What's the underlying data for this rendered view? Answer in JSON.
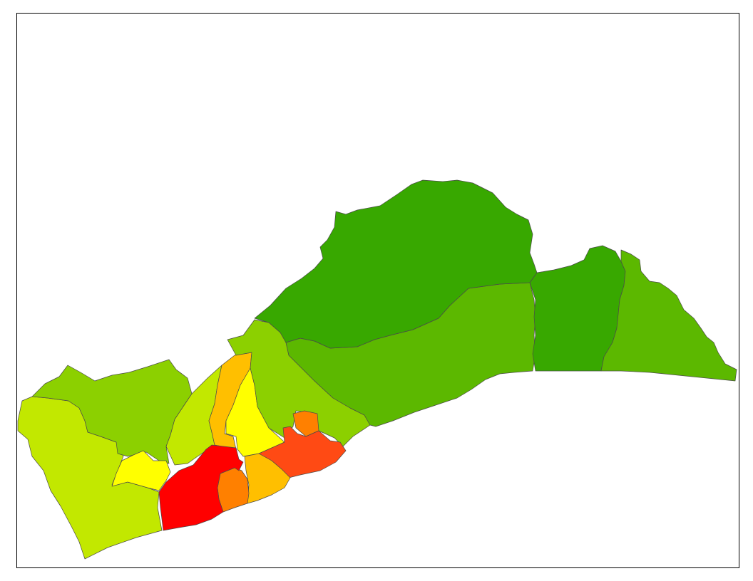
{
  "map": {
    "type": "choropleth",
    "legend": null,
    "palette": {
      "class_1": "#38a800",
      "class_2": "#5cb800",
      "class_3": "#8cd000",
      "class_4": "#c2e800",
      "class_5": "#ffff00",
      "class_6": "#ffbf00",
      "class_7": "#ff8000",
      "class_8": "#ff4a14",
      "class_9": "#ff0000"
    },
    "regions": [
      {
        "id": "north-central",
        "class": "class_1"
      },
      {
        "id": "east-inland",
        "class": "class_1"
      },
      {
        "id": "central-coastal",
        "class": "class_2"
      },
      {
        "id": "far-east",
        "class": "class_2"
      },
      {
        "id": "west-upland",
        "class": "class_3"
      },
      {
        "id": "central-west",
        "class": "class_3"
      },
      {
        "id": "west-coast",
        "class": "class_4"
      },
      {
        "id": "narrow-west",
        "class": "class_4"
      },
      {
        "id": "small-west-enclave",
        "class": "class_5"
      },
      {
        "id": "central-strip",
        "class": "class_5"
      },
      {
        "id": "orange-strip",
        "class": "class_6"
      },
      {
        "id": "coastal-mid",
        "class": "class_6"
      },
      {
        "id": "coastal-small",
        "class": "class_7"
      },
      {
        "id": "north-small",
        "class": "class_7"
      },
      {
        "id": "east-coastal-urban",
        "class": "class_8"
      },
      {
        "id": "core-urban",
        "class": "class_9"
      }
    ]
  }
}
